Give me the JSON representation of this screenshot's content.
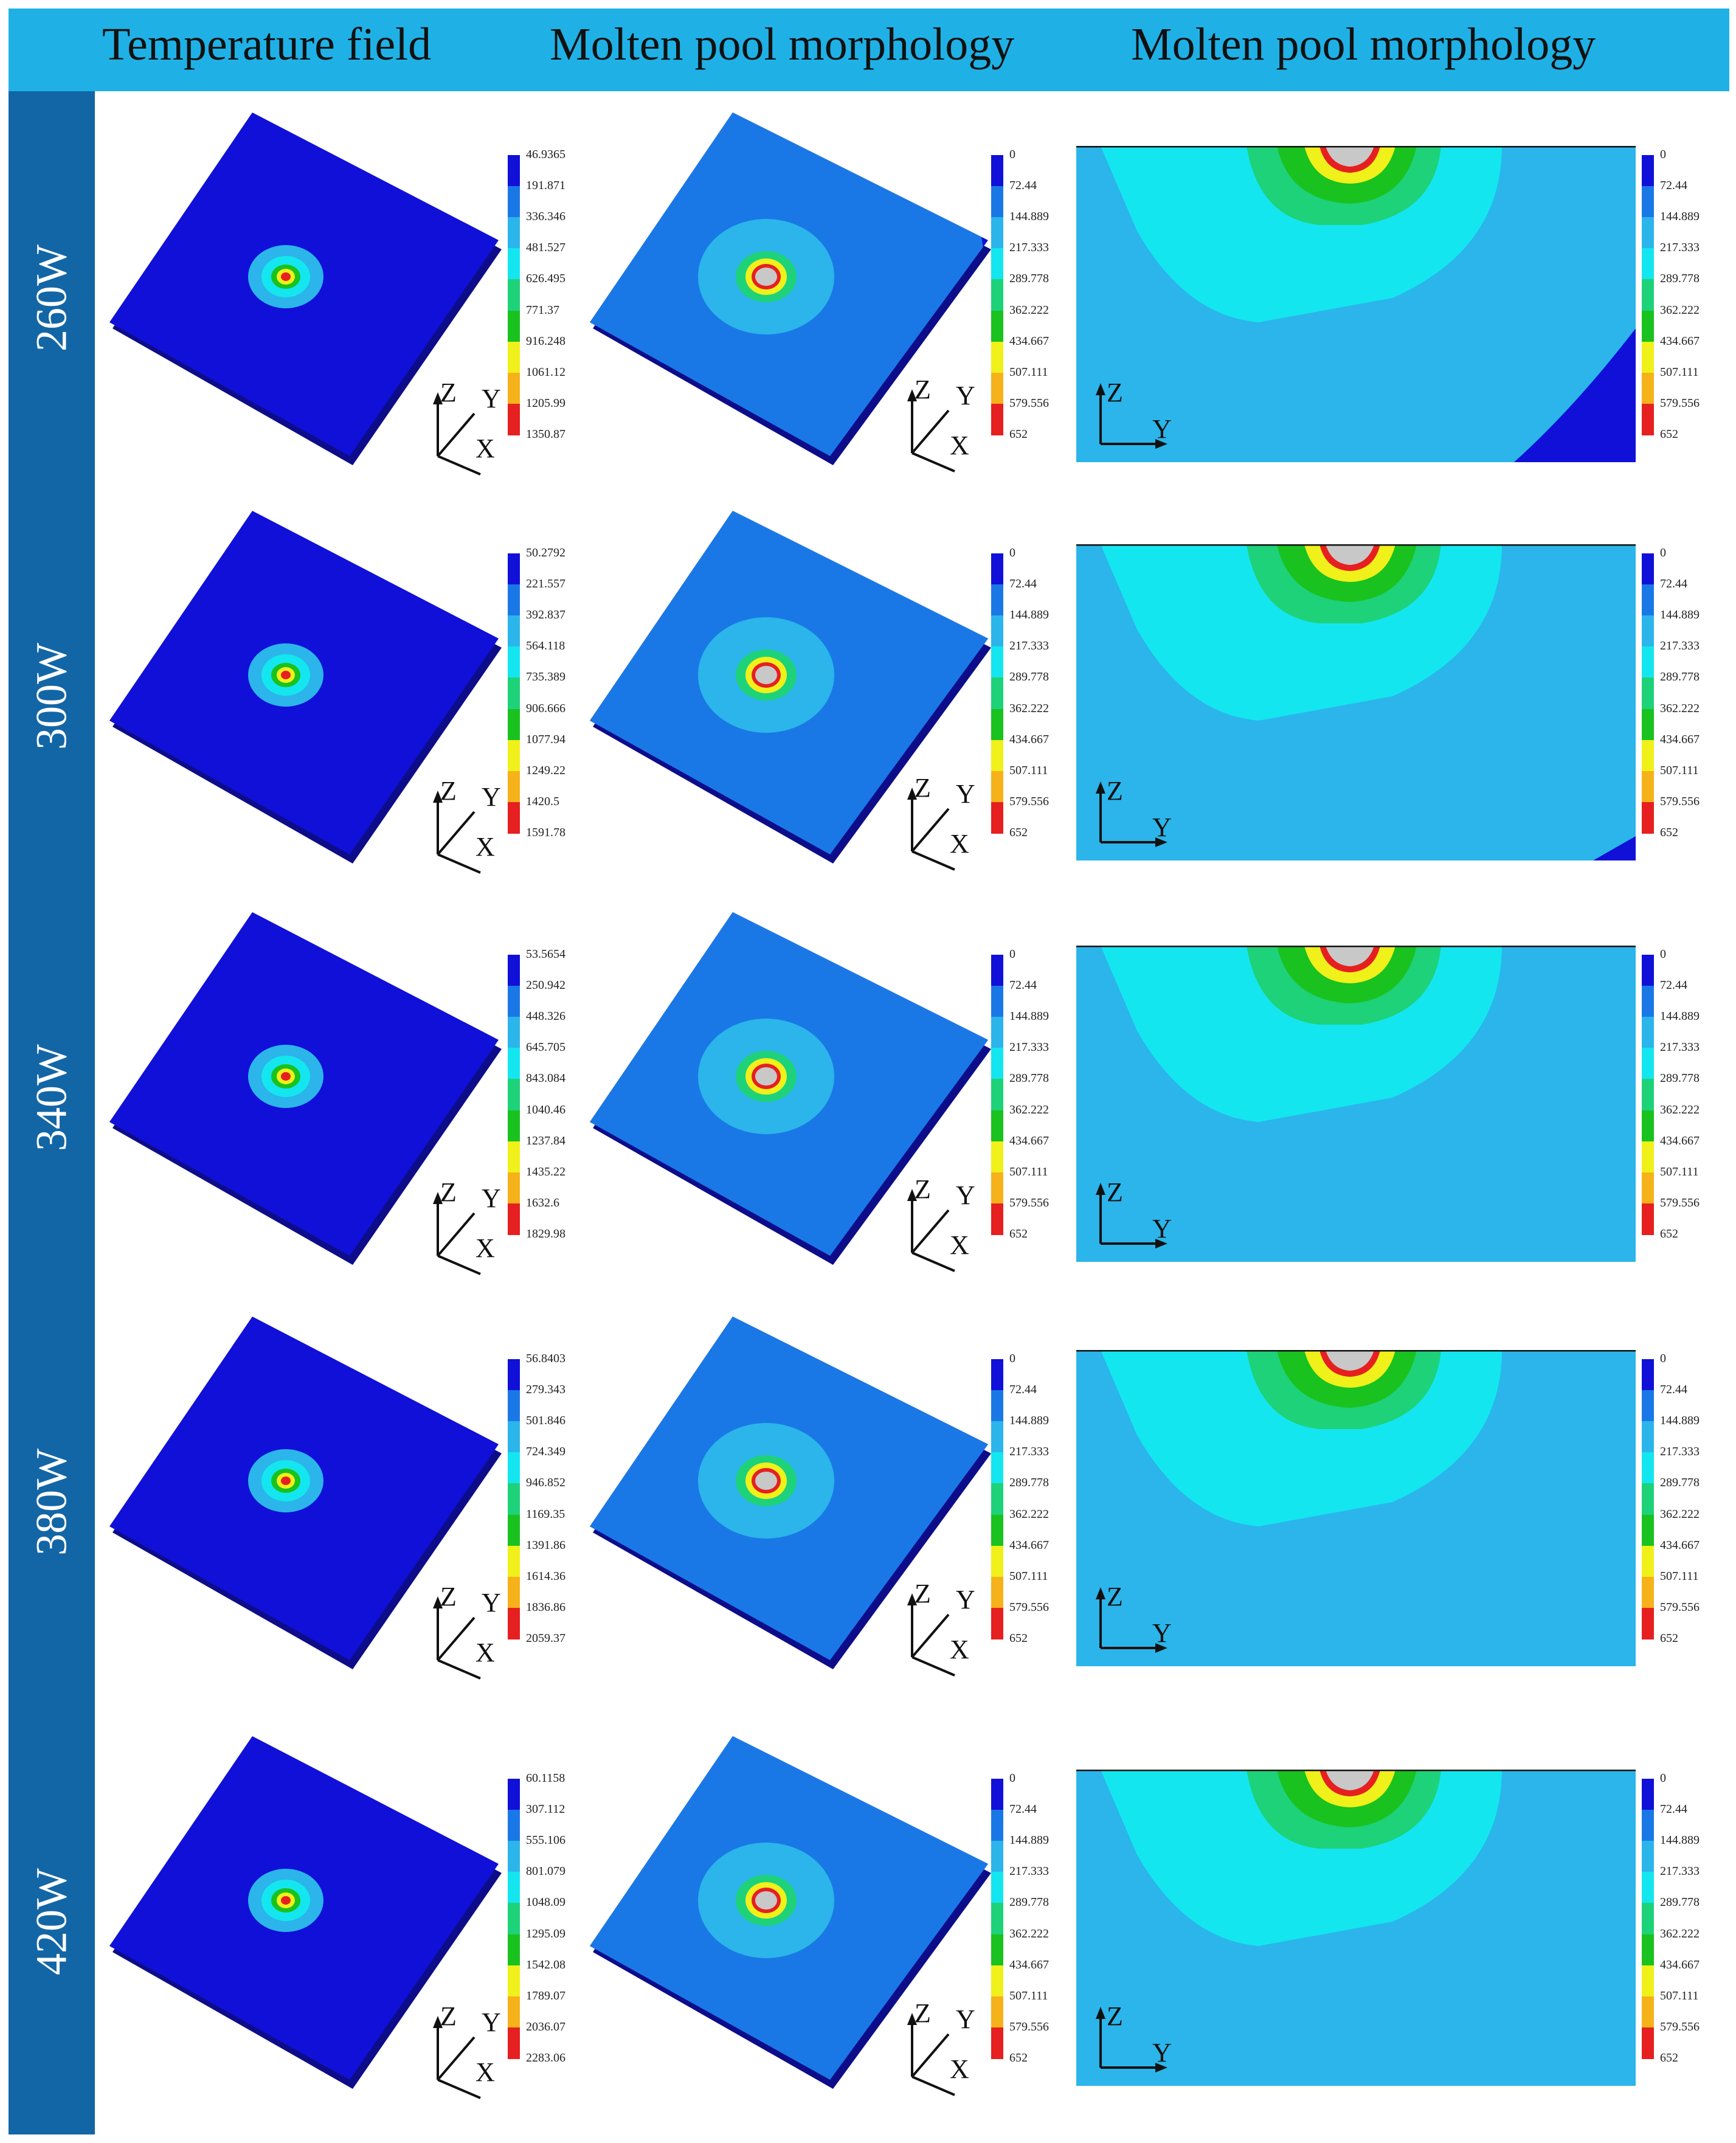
{
  "header": {
    "columns": [
      "Temperature  field",
      "Molten pool morphology",
      "Molten pool morphology"
    ]
  },
  "colors": {
    "header_bg": "#1fb1e6",
    "side_bg": "#1366a6",
    "contour": [
      "#1010d8",
      "#1a78e6",
      "#2bb5ea",
      "#14e6f0",
      "#1ed27a",
      "#19c21f",
      "#9be21a",
      "#f0f01a",
      "#f5b21a",
      "#e62020",
      "#c8c8c8"
    ]
  },
  "rows": [
    {
      "label": "260W",
      "temp_scale": [
        "46.9365",
        "191.871",
        "336.346",
        "481.527",
        "626.495",
        "771.37",
        "916.248",
        "1061.12",
        "1205.99",
        "1350.87"
      ],
      "pool_scale": [
        "0",
        "72.44",
        "144.889",
        "217.333",
        "289.778",
        "362.222",
        "434.667",
        "507.111",
        "579.556",
        "652"
      ],
      "section_scale": [
        "0",
        "72.44",
        "144.889",
        "217.333",
        "289.778",
        "362.222",
        "434.667",
        "507.111",
        "579.556",
        "652"
      ]
    },
    {
      "label": "300W",
      "temp_scale": [
        "50.2792",
        "221.557",
        "392.837",
        "564.118",
        "735.389",
        "906.666",
        "1077.94",
        "1249.22",
        "1420.5",
        "1591.78"
      ],
      "pool_scale": [
        "0",
        "72.44",
        "144.889",
        "217.333",
        "289.778",
        "362.222",
        "434.667",
        "507.111",
        "579.556",
        "652"
      ],
      "section_scale": [
        "0",
        "72.44",
        "144.889",
        "217.333",
        "289.778",
        "362.222",
        "434.667",
        "507.111",
        "579.556",
        "652"
      ]
    },
    {
      "label": "340W",
      "temp_scale": [
        "53.5654",
        "250.942",
        "448.326",
        "645.705",
        "843.084",
        "1040.46",
        "1237.84",
        "1435.22",
        "1632.6",
        "1829.98"
      ],
      "pool_scale": [
        "0",
        "72.44",
        "144.889",
        "217.333",
        "289.778",
        "362.222",
        "434.667",
        "507.111",
        "579.556",
        "652"
      ],
      "section_scale": [
        "0",
        "72.44",
        "144.889",
        "217.333",
        "289.778",
        "362.222",
        "434.667",
        "507.111",
        "579.556",
        "652"
      ]
    },
    {
      "label": "380W",
      "temp_scale": [
        "56.8403",
        "279.343",
        "501.846",
        "724.349",
        "946.852",
        "1169.35",
        "1391.86",
        "1614.36",
        "1836.86",
        "2059.37"
      ],
      "pool_scale": [
        "0",
        "72.44",
        "144.889",
        "217.333",
        "289.778",
        "362.222",
        "434.667",
        "507.111",
        "579.556",
        "652"
      ],
      "section_scale": [
        "0",
        "72.44",
        "144.889",
        "217.333",
        "289.778",
        "362.222",
        "434.667",
        "507.111",
        "579.556",
        "652"
      ]
    },
    {
      "label": "420W",
      "temp_scale": [
        "60.1158",
        "307.112",
        "555.106",
        "801.079",
        "1048.09",
        "1295.09",
        "1542.08",
        "1789.07",
        "2036.07",
        "2283.06"
      ],
      "pool_scale": [
        "0",
        "72.44",
        "144.889",
        "217.333",
        "289.778",
        "362.222",
        "434.667",
        "507.111",
        "579.556",
        "652"
      ],
      "section_scale": [
        "0",
        "72.44",
        "144.889",
        "217.333",
        "289.778",
        "362.222",
        "434.667",
        "507.111",
        "579.556",
        "652"
      ]
    }
  ],
  "axes": {
    "z": "Z",
    "y": "Y",
    "x": "X"
  }
}
